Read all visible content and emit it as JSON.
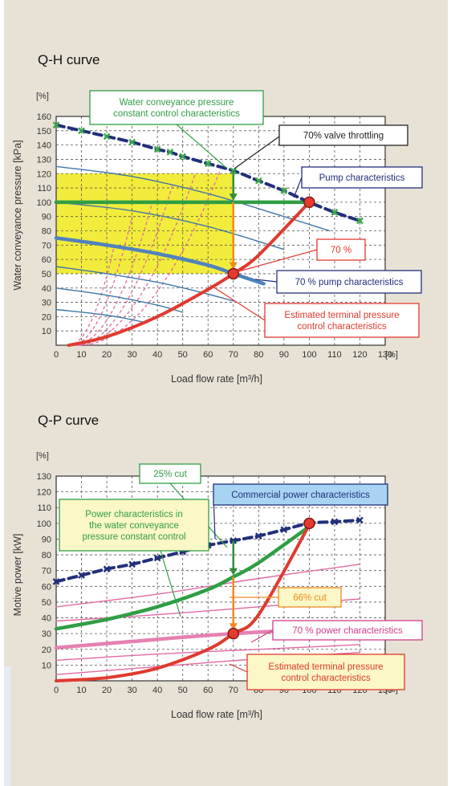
{
  "chart_data": [
    {
      "type": "line",
      "title": "Q-H curve",
      "xlabel": "Load flow rate [m³/h]",
      "ylabel": "Water conveyance pressure [kPa]",
      "x_unit": "[%]",
      "y_unit": "[%]",
      "xlim": [
        0,
        130
      ],
      "ylim": [
        0,
        160
      ],
      "x_ticks": [
        "0",
        "10",
        "20",
        "30",
        "40",
        "50",
        "60",
        "70",
        "80",
        "90",
        "100",
        "110",
        "120",
        "130"
      ],
      "y_ticks": [
        "10",
        "20",
        "30",
        "40",
        "50",
        "60",
        "70",
        "80",
        "90",
        "100",
        "110",
        "120",
        "130",
        "140",
        "150",
        "160"
      ],
      "grid": true,
      "shaded_region": {
        "x": [
          0,
          70
        ],
        "y": [
          50,
          120
        ],
        "color": "#f2ec3c"
      },
      "series": [
        {
          "name": "Pump characteristics",
          "style": "dashed-navy-with-markers",
          "x": [
            0,
            10,
            20,
            30,
            40,
            45,
            50,
            60,
            70,
            80,
            90,
            100,
            110,
            120
          ],
          "y": [
            154,
            150,
            146,
            142,
            137,
            135,
            132,
            127,
            122,
            115,
            108,
            100,
            93,
            87
          ]
        },
        {
          "name": "Water conveyance pressure constant control characteristics",
          "style": "green-horizontal",
          "x": [
            0,
            100
          ],
          "y": [
            100,
            100
          ]
        },
        {
          "name": "Estimated terminal pressure control characteristics",
          "style": "red-curve",
          "x": [
            5,
            20,
            40,
            60,
            70,
            80,
            100
          ],
          "y": [
            0,
            6,
            20,
            39,
            50,
            63,
            100
          ]
        },
        {
          "name": "70 % pump characteristics",
          "style": "blue-thick",
          "x": [
            0,
            20,
            40,
            60,
            70,
            82
          ],
          "y": [
            75,
            70,
            64,
            56,
            50,
            43
          ]
        },
        {
          "name": "",
          "style": "blue-thin",
          "x": [
            0,
            30,
            60,
            90,
            108
          ],
          "y": [
            125,
            118,
            106,
            90,
            80
          ]
        },
        {
          "name": "",
          "style": "blue-thin",
          "x": [
            0,
            30,
            60,
            90
          ],
          "y": [
            100,
            94,
            83,
            67
          ]
        },
        {
          "name": "",
          "style": "blue-thin",
          "x": [
            0,
            20,
            40,
            55,
            70
          ],
          "y": [
            55,
            50,
            44,
            38,
            31
          ]
        },
        {
          "name": "",
          "style": "blue-thin",
          "x": [
            0,
            20,
            40,
            50
          ],
          "y": [
            40,
            35,
            28,
            23
          ]
        },
        {
          "name": "",
          "style": "blue-thin",
          "x": [
            0,
            20,
            35
          ],
          "y": [
            25,
            21,
            16
          ]
        }
      ],
      "dashed_curves": [
        {
          "x0": 5,
          "y_end": 70,
          "x_end": 23
        },
        {
          "x0": 6,
          "y_end": 90,
          "x_end": 30
        },
        {
          "x0": 7,
          "y_end": 100,
          "x_end": 38
        },
        {
          "x0": 8,
          "y_end": 112,
          "x_end": 46
        },
        {
          "x0": 8,
          "y_end": 120,
          "x_end": 55
        },
        {
          "x0": 9,
          "y_end": 123,
          "x_end": 65
        }
      ],
      "points": [
        {
          "x": 100,
          "y": 100,
          "kind": "red-circle"
        },
        {
          "x": 70,
          "y": 50,
          "kind": "red-circle"
        }
      ],
      "arrows": [
        {
          "x": 70,
          "y_from": 122,
          "y_to": 101,
          "color": "#2f8f3a"
        },
        {
          "x": 70,
          "y_from": 100,
          "y_to": 53,
          "color": "#f08a1e"
        }
      ],
      "annotations": [
        {
          "text": [
            "Water conveyance pressure",
            "constant control characteristics"
          ],
          "color": "#2f9e44",
          "border": "#2f9e44",
          "bg": "#ffffff"
        },
        {
          "text": [
            "70% valve throttling"
          ],
          "color": "#222222",
          "border": "#222222",
          "bg": "#ffffff"
        },
        {
          "text": [
            "Pump characteristics"
          ],
          "color": "#22307a",
          "border": "#22307a",
          "bg": "#ffffff"
        },
        {
          "text": [
            "70 %"
          ],
          "color": "#e03a2f",
          "border": "#e03a2f",
          "bg": "#ffffff"
        },
        {
          "text": [
            "70 % pump characteristics"
          ],
          "color": "#22307a",
          "border": "#22307a",
          "bg": "#ffffff"
        },
        {
          "text": [
            "Estimated terminal pressure",
            "control characteristics"
          ],
          "color": "#e03a2f",
          "border": "#e03a2f",
          "bg": "#ffffff"
        }
      ]
    },
    {
      "type": "line",
      "title": "Q-P curve",
      "xlabel": "Load flow rate [m³/h]",
      "ylabel": "Motive power [kW]",
      "x_unit": "[%]",
      "y_unit": "[%]",
      "xlim": [
        0,
        130
      ],
      "ylim": [
        0,
        130
      ],
      "x_ticks": [
        "0",
        "10",
        "20",
        "30",
        "40",
        "50",
        "60",
        "70",
        "80",
        "90",
        "100",
        "110",
        "120",
        "130"
      ],
      "y_ticks": [
        "10",
        "20",
        "30",
        "40",
        "50",
        "60",
        "70",
        "80",
        "90",
        "100",
        "110",
        "120",
        "130"
      ],
      "grid": true,
      "series": [
        {
          "name": "Commercial power characteristics",
          "style": "dashed-navy-with-markers",
          "x": [
            0,
            10,
            20,
            30,
            40,
            50,
            60,
            70,
            80,
            90,
            100,
            110,
            120
          ],
          "y": [
            63,
            67,
            71,
            74,
            78,
            82,
            86,
            89,
            92,
            96,
            100,
            101,
            102
          ]
        },
        {
          "name": "Power characteristics in the water conveyance pressure constant control",
          "style": "green-curve",
          "x": [
            0,
            20,
            40,
            60,
            70,
            80,
            100
          ],
          "y": [
            33,
            39,
            47,
            58,
            66,
            75,
            98
          ]
        },
        {
          "name": "Estimated terminal pressure control characteristics",
          "style": "red-curve",
          "x": [
            0,
            20,
            40,
            60,
            70,
            80,
            100
          ],
          "y": [
            0,
            2,
            8,
            20,
            30,
            42,
            99
          ]
        },
        {
          "name": "70 % power characteristics",
          "style": "pink-thick",
          "x": [
            0,
            30,
            70,
            120
          ],
          "y": [
            21,
            25,
            30,
            34
          ]
        },
        {
          "name": "",
          "style": "pink-thin",
          "x": [
            0,
            40,
            80,
            120
          ],
          "y": [
            47,
            55,
            65,
            74
          ]
        },
        {
          "name": "",
          "style": "pink-thin",
          "x": [
            0,
            40,
            80,
            120
          ],
          "y": [
            38,
            42,
            47,
            52
          ]
        },
        {
          "name": "",
          "style": "pink-thin",
          "x": [
            0,
            40,
            80,
            120
          ],
          "y": [
            13,
            17,
            20,
            23
          ]
        },
        {
          "name": "",
          "style": "pink-thin",
          "x": [
            0,
            40,
            80,
            120
          ],
          "y": [
            4,
            9,
            14,
            18
          ]
        }
      ],
      "points": [
        {
          "x": 100,
          "y": 100,
          "kind": "red-circle"
        },
        {
          "x": 70,
          "y": 30,
          "kind": "red-circle"
        }
      ],
      "arrows": [
        {
          "x": 70,
          "y_from": 89,
          "y_to": 67,
          "color": "#2f8f3a"
        },
        {
          "x": 70,
          "y_from": 66,
          "y_to": 32,
          "color": "#f08a1e"
        }
      ],
      "annotations": [
        {
          "text": [
            "25% cut"
          ],
          "color": "#2f9e44",
          "border": "#2f9e44",
          "bg": "#ffffff"
        },
        {
          "text": [
            "Commercial power characteristics"
          ],
          "color": "#22307a",
          "border": "#22307a",
          "bg": "#a9d3f2"
        },
        {
          "text": [
            "Power characteristics in",
            "the water conveyance",
            "pressure constant control"
          ],
          "color": "#2f9e44",
          "border": "#2f9e44",
          "bg": "#fbf7c6"
        },
        {
          "text": [
            "66% cut"
          ],
          "color": "#f08a1e",
          "border": "#f08a1e",
          "bg": "#fbf7c6"
        },
        {
          "text": [
            "70 % power characteristics"
          ],
          "color": "#d23c8c",
          "border": "#d23c8c",
          "bg": "#ffffff"
        },
        {
          "text": [
            "Estimated terminal pressure",
            "control characteristics"
          ],
          "color": "#e03a2f",
          "border": "#e03a2f",
          "bg": "#fbf7c6"
        }
      ]
    }
  ]
}
